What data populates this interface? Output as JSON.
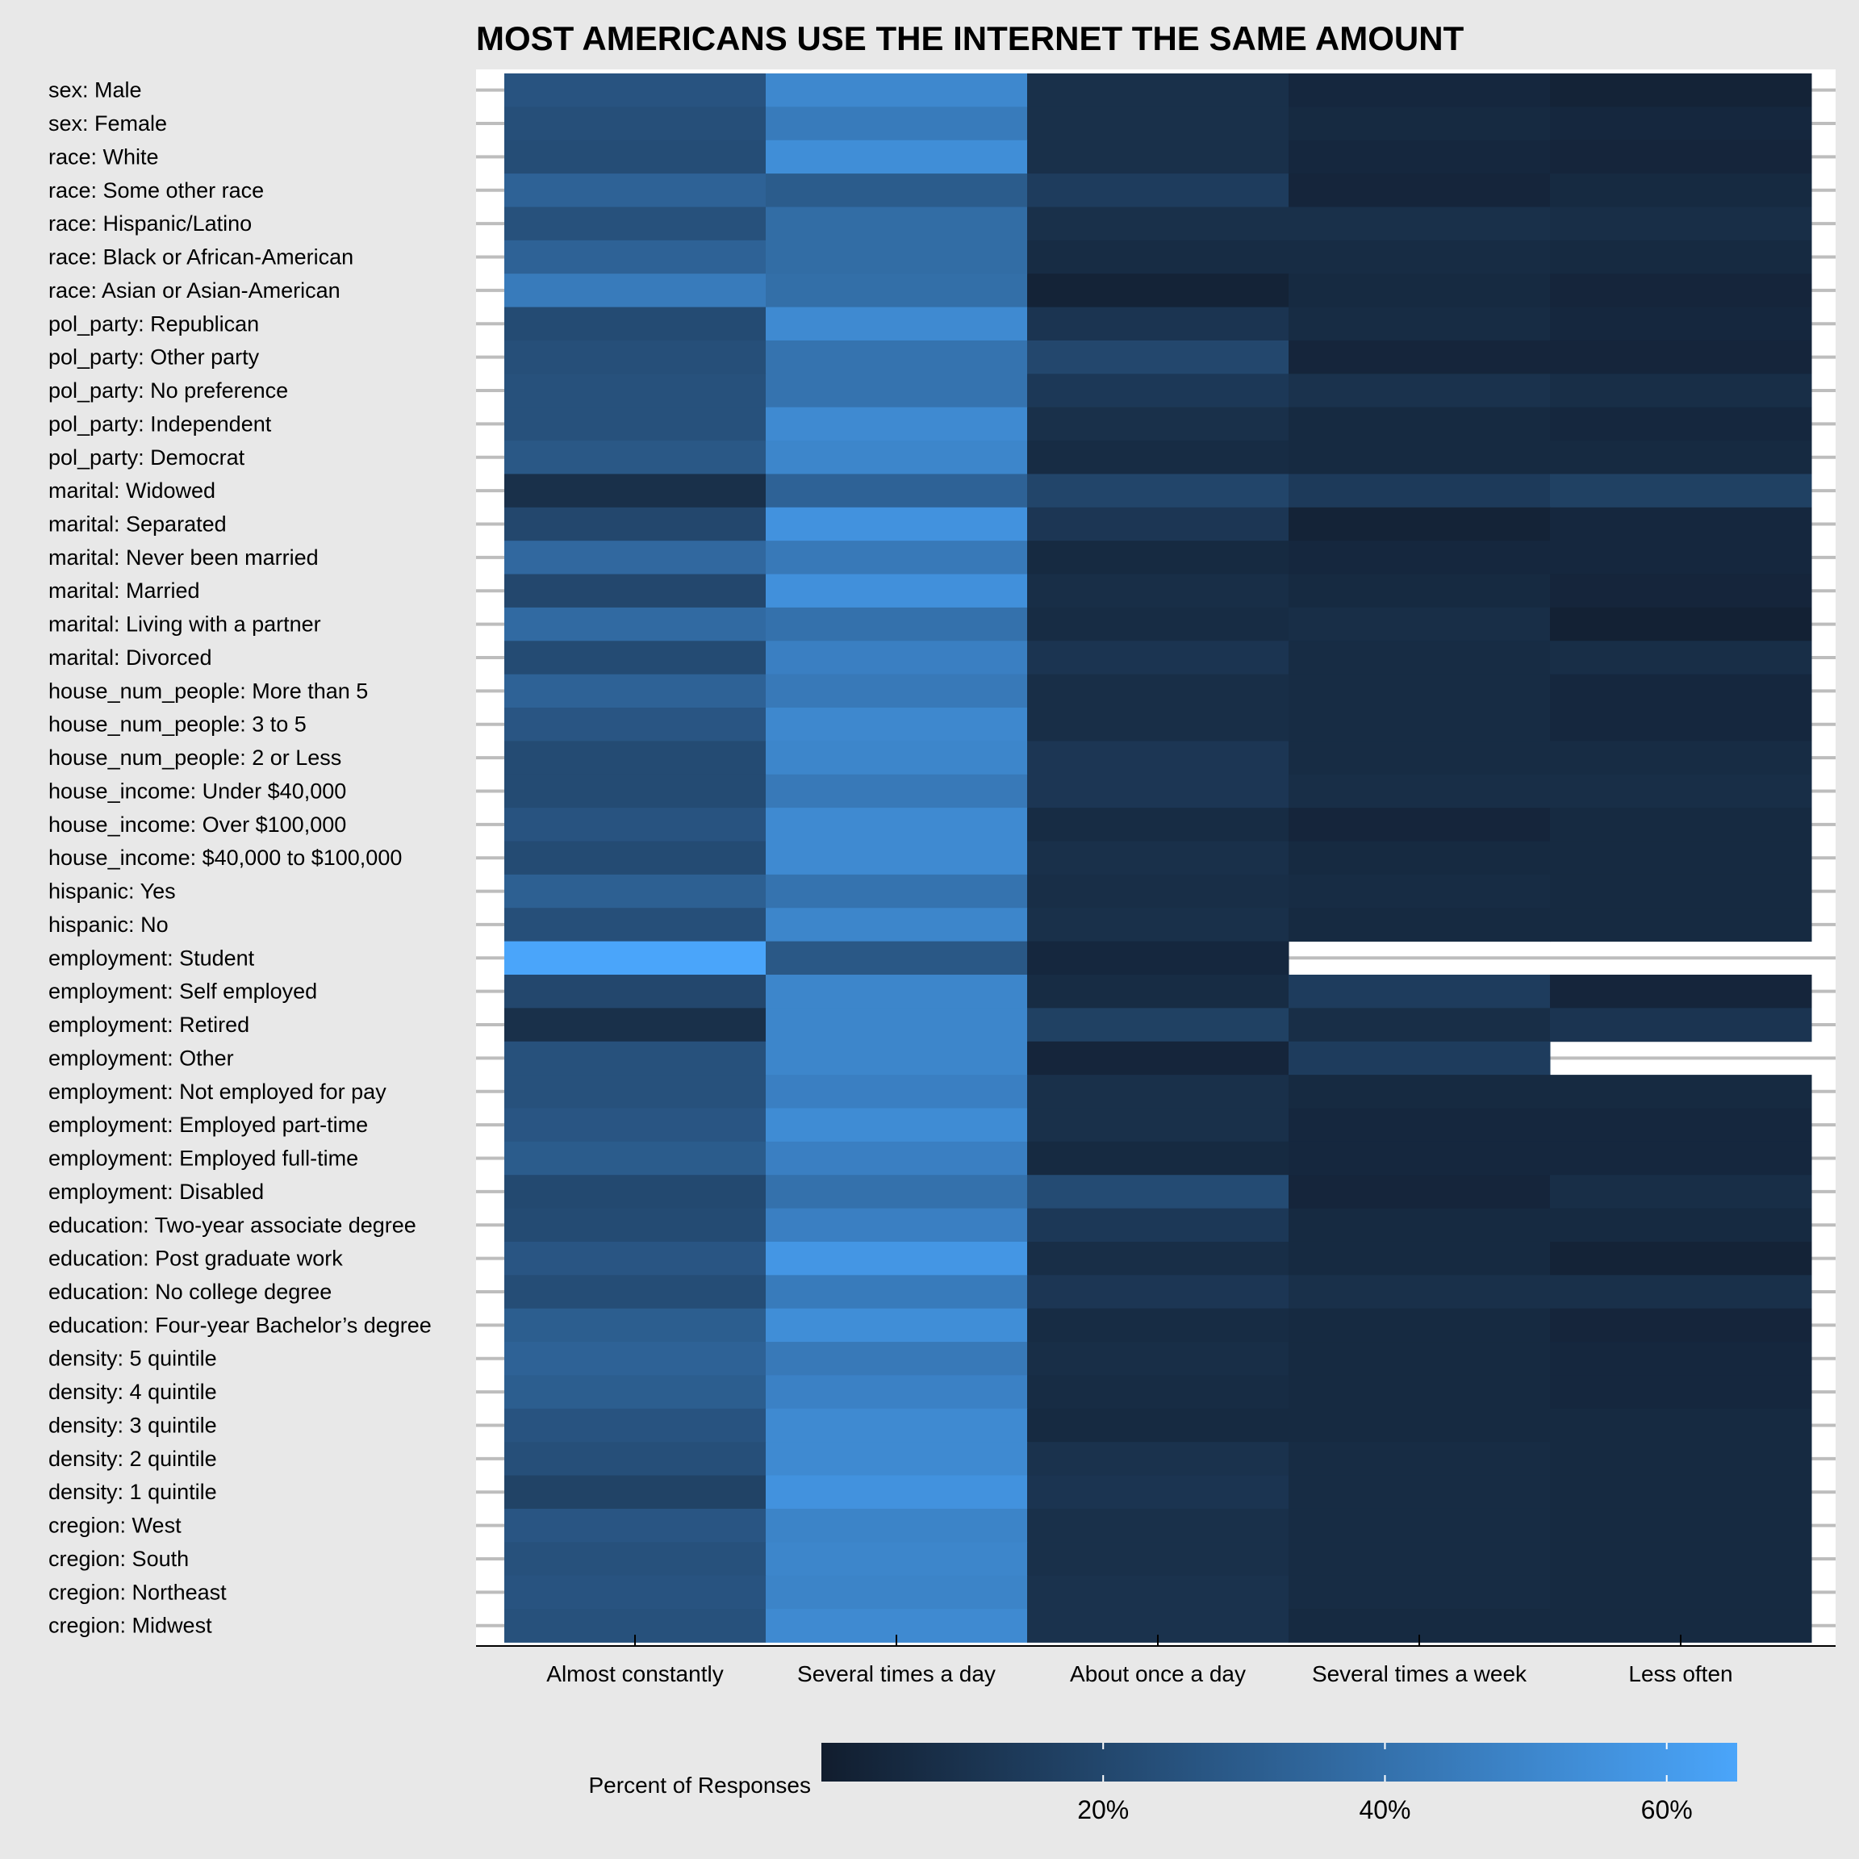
{
  "chart_data": {
    "type": "heatmap",
    "title": "MOST AMERICANS USE THE INTERNET THE SAME AMOUNT",
    "xlabel": "",
    "ylabel": "",
    "x_categories": [
      "Almost constantly",
      "Several times a day",
      "About once a day",
      "Several times a week",
      "Less often"
    ],
    "y_categories": [
      "sex: Male",
      "sex: Female",
      "race: White",
      "race: Some other race",
      "race: Hispanic/Latino",
      "race: Black or African-American",
      "race: Asian or Asian-American",
      "pol_party: Republican",
      "pol_party: Other party",
      "pol_party: No preference",
      "pol_party: Independent",
      "pol_party: Democrat",
      "marital: Widowed",
      "marital: Separated",
      "marital: Never been married",
      "marital: Married",
      "marital: Living with a partner",
      "marital: Divorced",
      "house_num_people: More than 5",
      "house_num_people: 3 to 5",
      "house_num_people: 2 or Less",
      "house_income: Under $40,000",
      "house_income: Over $100,000",
      "house_income: $40,000 to $100,000",
      "hispanic: Yes",
      "hispanic: No",
      "employment: Student",
      "employment: Self employed",
      "employment: Retired",
      "employment: Other",
      "employment: Not employed for pay",
      "employment: Employed part-time",
      "employment: Employed full-time",
      "employment: Disabled",
      "education: Two-year associate degree",
      "education: Post graduate work",
      "education: No college degree",
      "education: Four-year Bachelor’s degree",
      "density: 5 quintile",
      "density: 4 quintile",
      "density: 3 quintile",
      "density: 2 quintile",
      "density: 1 quintile",
      "cregion: West",
      "cregion: South",
      "cregion: Northeast",
      "cregion: Midwest"
    ],
    "values": [
      [
        26,
        51,
        9,
        5,
        3
      ],
      [
        24,
        45,
        9,
        6,
        5
      ],
      [
        23,
        54,
        9,
        5,
        4
      ],
      [
        33,
        30,
        15,
        4,
        6
      ],
      [
        25,
        38,
        9,
        9,
        8
      ],
      [
        33,
        38,
        7,
        7,
        6
      ],
      [
        45,
        39,
        3,
        6,
        4
      ],
      [
        22,
        52,
        11,
        7,
        5
      ],
      [
        24,
        41,
        20,
        4,
        4
      ],
      [
        25,
        41,
        13,
        10,
        8
      ],
      [
        25,
        52,
        9,
        6,
        5
      ],
      [
        28,
        50,
        7,
        6,
        6
      ],
      [
        9,
        33,
        19,
        14,
        17
      ],
      [
        20,
        56,
        12,
        3,
        5
      ],
      [
        36,
        44,
        6,
        5,
        5
      ],
      [
        20,
        55,
        8,
        6,
        4
      ],
      [
        37,
        40,
        7,
        8,
        2
      ],
      [
        22,
        47,
        11,
        7,
        8
      ],
      [
        33,
        44,
        8,
        7,
        5
      ],
      [
        27,
        51,
        8,
        7,
        5
      ],
      [
        22,
        50,
        12,
        7,
        7
      ],
      [
        22,
        44,
        12,
        8,
        8
      ],
      [
        26,
        52,
        7,
        4,
        6
      ],
      [
        22,
        52,
        9,
        6,
        6
      ],
      [
        32,
        41,
        8,
        7,
        6
      ],
      [
        24,
        50,
        9,
        6,
        6
      ],
      [
        65,
        28,
        5,
        null,
        null
      ],
      [
        20,
        50,
        7,
        15,
        4
      ],
      [
        9,
        50,
        17,
        8,
        11
      ],
      [
        25,
        50,
        4,
        15,
        null
      ],
      [
        25,
        47,
        9,
        6,
        6
      ],
      [
        27,
        53,
        9,
        5,
        5
      ],
      [
        30,
        47,
        6,
        5,
        5
      ],
      [
        21,
        40,
        22,
        4,
        8
      ],
      [
        22,
        47,
        13,
        6,
        6
      ],
      [
        27,
        58,
        8,
        6,
        3
      ],
      [
        23,
        45,
        12,
        9,
        9
      ],
      [
        31,
        54,
        7,
        6,
        4
      ],
      [
        33,
        44,
        8,
        6,
        5
      ],
      [
        31,
        48,
        7,
        6,
        5
      ],
      [
        26,
        52,
        6,
        6,
        6
      ],
      [
        24,
        52,
        10,
        7,
        6
      ],
      [
        18,
        56,
        11,
        7,
        6
      ],
      [
        27,
        49,
        9,
        7,
        6
      ],
      [
        25,
        50,
        9,
        7,
        6
      ],
      [
        26,
        49,
        10,
        7,
        6
      ],
      [
        25,
        52,
        10,
        6,
        6
      ]
    ],
    "legend_title": "Percent of Responses",
    "color_range": [
      0,
      65
    ],
    "legend_ticks": [
      20,
      40,
      60
    ],
    "legend_tick_labels": [
      "20%",
      "40%",
      "60%"
    ],
    "color_low": "#111d2e",
    "color_high": "#4aa5fa",
    "missing_color": "#ffffff",
    "background_color": "#e8e8e8",
    "legend_position": "bottom",
    "grid": true
  }
}
